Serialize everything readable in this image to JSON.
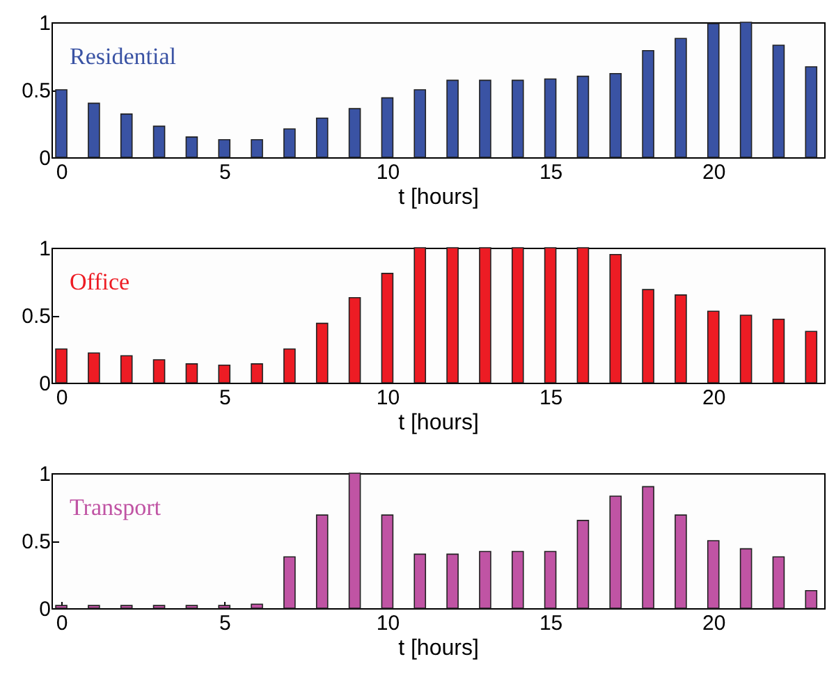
{
  "chart_data": [
    {
      "type": "bar",
      "x": [
        0,
        1,
        2,
        3,
        4,
        5,
        6,
        7,
        8,
        9,
        10,
        11,
        12,
        13,
        14,
        15,
        16,
        17,
        18,
        19,
        20,
        21,
        22,
        23
      ],
      "xlabel": "t [hours]",
      "xlim": [
        -0.3,
        23.4
      ],
      "xticks": [
        0,
        5,
        10,
        15,
        20
      ],
      "ylim": [
        0,
        1
      ],
      "yticks": [
        0,
        0.5,
        1
      ],
      "series": [
        {
          "name": "Residential",
          "color": "#3a53a4",
          "values": [
            0.5,
            0.4,
            0.32,
            0.23,
            0.15,
            0.13,
            0.13,
            0.21,
            0.29,
            0.36,
            0.44,
            0.5,
            0.57,
            0.57,
            0.57,
            0.58,
            0.6,
            0.62,
            0.79,
            0.88,
            0.99,
            1,
            0.83,
            0.67
          ]
        }
      ]
    },
    {
      "type": "bar",
      "x": [
        0,
        1,
        2,
        3,
        4,
        5,
        6,
        7,
        8,
        9,
        10,
        11,
        12,
        13,
        14,
        15,
        16,
        17,
        18,
        19,
        20,
        21,
        22,
        23
      ],
      "xlabel": "t [hours]",
      "xlim": [
        -0.3,
        23.4
      ],
      "xticks": [
        0,
        5,
        10,
        15,
        20
      ],
      "ylim": [
        0,
        1
      ],
      "yticks": [
        0,
        0.5,
        1
      ],
      "series": [
        {
          "name": "Office",
          "color": "#ed1c24",
          "values": [
            0.25,
            0.22,
            0.2,
            0.17,
            0.14,
            0.13,
            0.14,
            0.25,
            0.44,
            0.63,
            0.81,
            1,
            1,
            1,
            1,
            1,
            1,
            0.95,
            0.69,
            0.65,
            0.53,
            0.5,
            0.47,
            0.38
          ]
        }
      ]
    },
    {
      "type": "bar",
      "x": [
        0,
        1,
        2,
        3,
        4,
        5,
        6,
        7,
        8,
        9,
        10,
        11,
        12,
        13,
        14,
        15,
        16,
        17,
        18,
        19,
        20,
        21,
        22,
        23
      ],
      "xlabel": "t [hours]",
      "xlim": [
        -0.3,
        23.4
      ],
      "xticks": [
        0,
        5,
        10,
        15,
        20
      ],
      "ylim": [
        0,
        1
      ],
      "yticks": [
        0,
        0.5,
        1
      ],
      "series": [
        {
          "name": "Transport",
          "color": "#c054a4",
          "values": [
            0.02,
            0.02,
            0.02,
            0.02,
            0.02,
            0.02,
            0.03,
            0.38,
            0.69,
            1,
            0.69,
            0.4,
            0.4,
            0.42,
            0.42,
            0.42,
            0.65,
            0.83,
            0.9,
            0.69,
            0.5,
            0.44,
            0.38,
            0.13
          ]
        }
      ]
    }
  ]
}
